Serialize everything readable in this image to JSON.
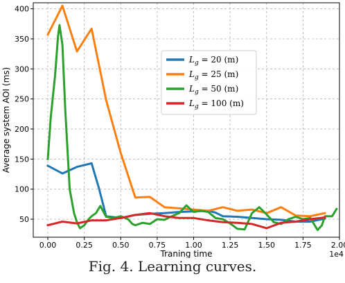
{
  "chart_data": {
    "type": "line",
    "title": "",
    "xlabel": "Traning time",
    "ylabel": "Average system AOI (ms)",
    "x_offset_label": "1e4",
    "xlim": [
      -0.1,
      2.0
    ],
    "ylim": [
      20,
      410
    ],
    "xticks": [
      0.0,
      0.25,
      0.5,
      0.75,
      1.0,
      1.25,
      1.5,
      1.75,
      2.0
    ],
    "xtick_labels": [
      "0.00",
      "0.25",
      "0.50",
      "0.75",
      "1.00",
      "1.25",
      "1.50",
      "1.75",
      "2.00"
    ],
    "yticks": [
      50,
      100,
      150,
      200,
      250,
      300,
      350,
      400
    ],
    "ytick_labels": [
      "50",
      "100",
      "150",
      "200",
      "250",
      "300",
      "350",
      "400"
    ],
    "grid": true,
    "legend_position": "center-right",
    "series": [
      {
        "name": "L_g = 20 (m)",
        "color": "#1f77b4",
        "points": [
          [
            0.0,
            139
          ],
          [
            0.1,
            126
          ],
          [
            0.2,
            137
          ],
          [
            0.3,
            143
          ],
          [
            0.35,
            102
          ],
          [
            0.4,
            55
          ],
          [
            0.5,
            52
          ],
          [
            0.6,
            57
          ],
          [
            0.7,
            59
          ],
          [
            0.8,
            60
          ],
          [
            0.9,
            62
          ],
          [
            1.0,
            63
          ],
          [
            1.1,
            64
          ],
          [
            1.15,
            61
          ],
          [
            1.2,
            55
          ],
          [
            1.3,
            54
          ],
          [
            1.4,
            52
          ],
          [
            1.5,
            50
          ],
          [
            1.6,
            49
          ],
          [
            1.7,
            46
          ],
          [
            1.8,
            46
          ],
          [
            1.9,
            51
          ]
        ]
      },
      {
        "name": "L_g = 25 (m)",
        "color": "#ff7f0e",
        "points": [
          [
            0.0,
            357
          ],
          [
            0.1,
            405
          ],
          [
            0.2,
            329
          ],
          [
            0.3,
            367
          ],
          [
            0.4,
            248
          ],
          [
            0.5,
            160
          ],
          [
            0.6,
            86
          ],
          [
            0.7,
            87
          ],
          [
            0.8,
            70
          ],
          [
            0.9,
            68
          ],
          [
            1.0,
            66
          ],
          [
            1.1,
            64
          ],
          [
            1.2,
            70
          ],
          [
            1.3,
            64
          ],
          [
            1.4,
            66
          ],
          [
            1.5,
            60
          ],
          [
            1.6,
            70
          ],
          [
            1.7,
            56
          ],
          [
            1.8,
            55
          ],
          [
            1.9,
            60
          ]
        ]
      },
      {
        "name": "L_g = 50 (m)",
        "color": "#2ca02c",
        "points": [
          [
            0.0,
            150
          ],
          [
            0.02,
            220
          ],
          [
            0.05,
            290
          ],
          [
            0.07,
            355
          ],
          [
            0.08,
            373
          ],
          [
            0.1,
            340
          ],
          [
            0.12,
            230
          ],
          [
            0.15,
            100
          ],
          [
            0.18,
            60
          ],
          [
            0.2,
            45
          ],
          [
            0.22,
            35
          ],
          [
            0.25,
            40
          ],
          [
            0.28,
            50
          ],
          [
            0.3,
            55
          ],
          [
            0.33,
            60
          ],
          [
            0.36,
            72
          ],
          [
            0.4,
            54
          ],
          [
            0.45,
            52
          ],
          [
            0.5,
            55
          ],
          [
            0.55,
            50
          ],
          [
            0.58,
            42
          ],
          [
            0.6,
            40
          ],
          [
            0.65,
            44
          ],
          [
            0.7,
            42
          ],
          [
            0.75,
            50
          ],
          [
            0.8,
            49
          ],
          [
            0.85,
            55
          ],
          [
            0.9,
            60
          ],
          [
            0.95,
            73
          ],
          [
            1.0,
            62
          ],
          [
            1.05,
            64
          ],
          [
            1.1,
            62
          ],
          [
            1.15,
            52
          ],
          [
            1.2,
            50
          ],
          [
            1.25,
            43
          ],
          [
            1.3,
            34
          ],
          [
            1.35,
            33
          ],
          [
            1.4,
            60
          ],
          [
            1.45,
            70
          ],
          [
            1.5,
            58
          ],
          [
            1.55,
            45
          ],
          [
            1.6,
            42
          ],
          [
            1.65,
            50
          ],
          [
            1.7,
            54
          ],
          [
            1.75,
            50
          ],
          [
            1.8,
            52
          ],
          [
            1.85,
            32
          ],
          [
            1.88,
            40
          ],
          [
            1.9,
            55
          ],
          [
            1.95,
            55
          ],
          [
            1.98,
            67
          ]
        ]
      },
      {
        "name": "L_g = 100 (m)",
        "color": "#d62728",
        "points": [
          [
            0.0,
            40
          ],
          [
            0.1,
            46
          ],
          [
            0.2,
            43
          ],
          [
            0.3,
            48
          ],
          [
            0.4,
            48
          ],
          [
            0.5,
            52
          ],
          [
            0.6,
            57
          ],
          [
            0.7,
            60
          ],
          [
            0.8,
            55
          ],
          [
            0.9,
            52
          ],
          [
            1.0,
            52
          ],
          [
            1.1,
            48
          ],
          [
            1.2,
            45
          ],
          [
            1.3,
            44
          ],
          [
            1.4,
            42
          ],
          [
            1.5,
            35
          ],
          [
            1.6,
            44
          ],
          [
            1.7,
            46
          ],
          [
            1.8,
            50
          ],
          [
            1.9,
            53
          ]
        ]
      }
    ],
    "legend": [
      {
        "prefix": "L",
        "sub": "g",
        "rest": " = 20 (m)",
        "color": "#1f77b4"
      },
      {
        "prefix": "L",
        "sub": "g",
        "rest": " = 25 (m)",
        "color": "#ff7f0e"
      },
      {
        "prefix": "L",
        "sub": "g",
        "rest": " = 50 (m)",
        "color": "#2ca02c"
      },
      {
        "prefix": "L",
        "sub": "g",
        "rest": " = 100 (m)",
        "color": "#d62728"
      }
    ]
  },
  "caption": "Fig. 4. Learning curves."
}
